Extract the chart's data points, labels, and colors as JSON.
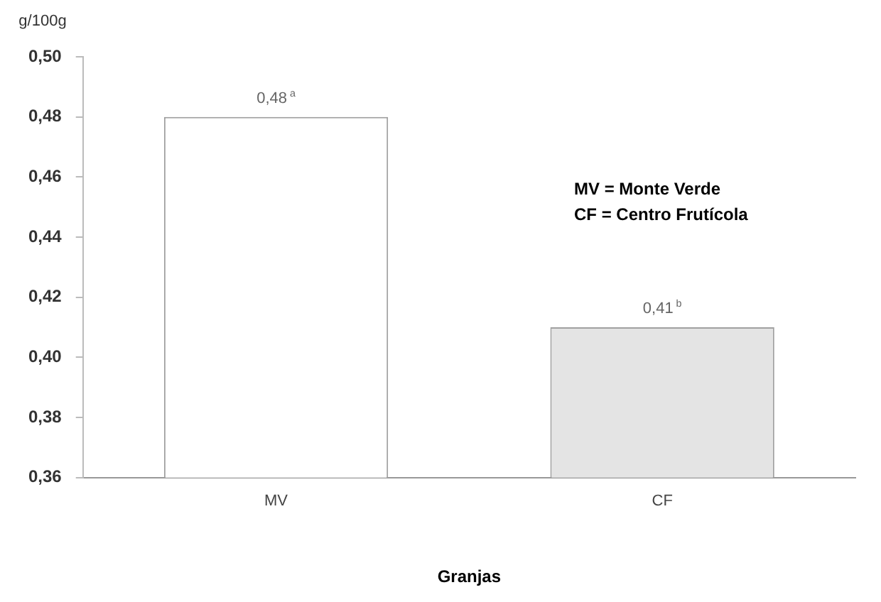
{
  "chart_data": {
    "type": "bar",
    "xlabel": "Granjas",
    "ylabel": "g/100g",
    "categories": [
      "MV",
      "CF"
    ],
    "values": [
      0.48,
      0.41
    ],
    "colors": [
      "#ffffff",
      "#e4e4e4"
    ],
    "value_labels": [
      "0,48$^{a}$",
      "0,41$^{b}$"
    ],
    "ylim": [
      0.36,
      0.5
    ],
    "yticks": [
      {
        "value": 0.36,
        "label": "0,36"
      },
      {
        "value": 0.38,
        "label": "0,38"
      },
      {
        "value": 0.4,
        "label": "0,40"
      },
      {
        "value": 0.42,
        "label": "0,42"
      },
      {
        "value": 0.44,
        "label": "0,44"
      },
      {
        "value": 0.46,
        "label": "0,46"
      },
      {
        "value": 0.48,
        "label": "0,48"
      },
      {
        "value": 0.5,
        "label": "0,50"
      }
    ],
    "annotations": [
      "MV = Monte Verde",
      "CF = Centro Frutícola"
    ],
    "grid": false,
    "legend": false
  }
}
